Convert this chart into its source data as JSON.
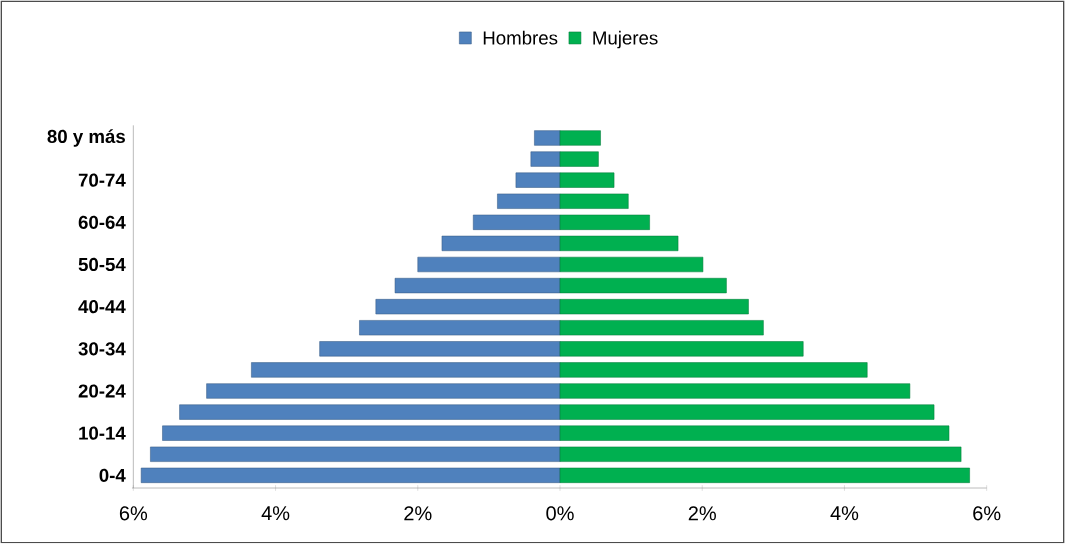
{
  "chart_data": {
    "type": "bar",
    "orientation": "horizontal",
    "categories": [
      "80 y más",
      null,
      "70-74",
      null,
      "60-64",
      null,
      "50-54",
      null,
      "40-44",
      null,
      "30-34",
      null,
      "20-24",
      null,
      "10-14",
      null,
      "0-4"
    ],
    "series": [
      {
        "name": "Hombres",
        "color": "#4f81bd",
        "values": [
          -0.36,
          -0.41,
          -0.62,
          -0.88,
          -1.22,
          -1.66,
          -2.0,
          -2.32,
          -2.59,
          -2.82,
          -3.38,
          -4.34,
          -4.97,
          -5.35,
          -5.59,
          -5.76,
          -5.89
        ]
      },
      {
        "name": "Mujeres",
        "color": "#00b050",
        "values": [
          0.57,
          0.54,
          0.76,
          0.96,
          1.26,
          1.66,
          2.01,
          2.34,
          2.65,
          2.86,
          3.42,
          4.32,
          4.92,
          5.26,
          5.47,
          5.64,
          5.76
        ]
      }
    ],
    "xlim": [
      -6,
      6
    ],
    "xticks": [
      {
        "value": -6,
        "label": "6%"
      },
      {
        "value": -4,
        "label": "4%"
      },
      {
        "value": -2,
        "label": "2%"
      },
      {
        "value": 0,
        "label": "0%"
      },
      {
        "value": 2,
        "label": "2%"
      },
      {
        "value": 4,
        "label": "4%"
      },
      {
        "value": 6,
        "label": "6%"
      }
    ],
    "stacked": true,
    "legend": "top"
  }
}
